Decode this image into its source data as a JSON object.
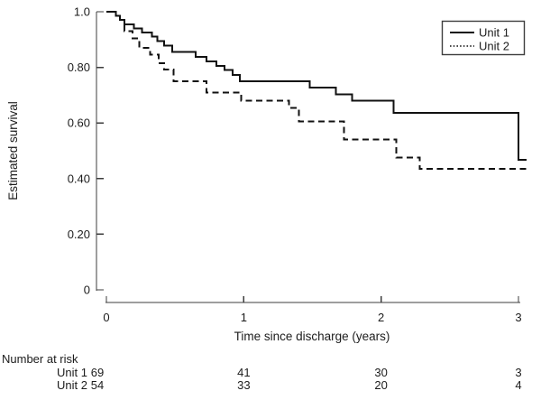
{
  "chart_data": {
    "type": "line",
    "variant": "kaplan_meier_step",
    "title": "",
    "xlabel": "Time since discharge (years)",
    "ylabel": "Estimated survival",
    "xlim": [
      0,
      3
    ],
    "ylim": [
      0,
      1.0
    ],
    "grid": false,
    "legend_position": "top-right",
    "x_ticks": [
      {
        "value": 0,
        "label": "0"
      },
      {
        "value": 1,
        "label": "1"
      },
      {
        "value": 2,
        "label": "2"
      },
      {
        "value": 3,
        "label": "3"
      }
    ],
    "y_ticks": [
      {
        "value": 1.0,
        "label": "1.0"
      },
      {
        "value": 0.8,
        "label": "0.80"
      },
      {
        "value": 0.6,
        "label": "0.60"
      },
      {
        "value": 0.4,
        "label": "0.40"
      },
      {
        "value": 0.2,
        "label": "0.20"
      },
      {
        "value": 0.0,
        "label": "0"
      }
    ],
    "series": [
      {
        "name": "Unit 1",
        "line_style": "solid",
        "legend_sample": "solid",
        "end_t": 3.06,
        "steps": [
          [
            0.0,
            1.0
          ],
          [
            0.07,
            0.985
          ],
          [
            0.1,
            0.97
          ],
          [
            0.13,
            0.955
          ],
          [
            0.2,
            0.94
          ],
          [
            0.26,
            0.925
          ],
          [
            0.33,
            0.91
          ],
          [
            0.37,
            0.895
          ],
          [
            0.42,
            0.878
          ],
          [
            0.48,
            0.855
          ],
          [
            0.65,
            0.838
          ],
          [
            0.73,
            0.822
          ],
          [
            0.8,
            0.806
          ],
          [
            0.86,
            0.79
          ],
          [
            0.92,
            0.773
          ],
          [
            0.97,
            0.75
          ],
          [
            1.48,
            0.727
          ],
          [
            1.67,
            0.703
          ],
          [
            1.79,
            0.68
          ],
          [
            2.09,
            0.637
          ],
          [
            3.0,
            0.468
          ]
        ]
      },
      {
        "name": "Unit 2",
        "line_style": "dashed",
        "legend_sample": "dotted",
        "end_t": 3.08,
        "steps": [
          [
            0.0,
            1.0
          ],
          [
            0.07,
            0.985
          ],
          [
            0.1,
            0.97
          ],
          [
            0.13,
            0.93
          ],
          [
            0.19,
            0.905
          ],
          [
            0.24,
            0.87
          ],
          [
            0.32,
            0.845
          ],
          [
            0.38,
            0.815
          ],
          [
            0.42,
            0.792
          ],
          [
            0.49,
            0.75
          ],
          [
            0.73,
            0.71
          ],
          [
            0.98,
            0.68
          ],
          [
            1.33,
            0.655
          ],
          [
            1.4,
            0.605
          ],
          [
            1.73,
            0.54
          ],
          [
            2.11,
            0.475
          ],
          [
            2.28,
            0.435
          ]
        ]
      }
    ],
    "number_at_risk": {
      "title": "Number at risk",
      "time_points": [
        0,
        1,
        2,
        3
      ],
      "rows": [
        {
          "label": "Unit 1",
          "values": [
            "69",
            "41",
            "30",
            "3"
          ]
        },
        {
          "label": "Unit 2",
          "values": [
            "54",
            "33",
            "20",
            "4"
          ]
        }
      ]
    },
    "colors": {
      "line": "#111111",
      "axis": "#3d3d3d",
      "text": "#1c1c1c",
      "background": "#ffffff"
    }
  }
}
